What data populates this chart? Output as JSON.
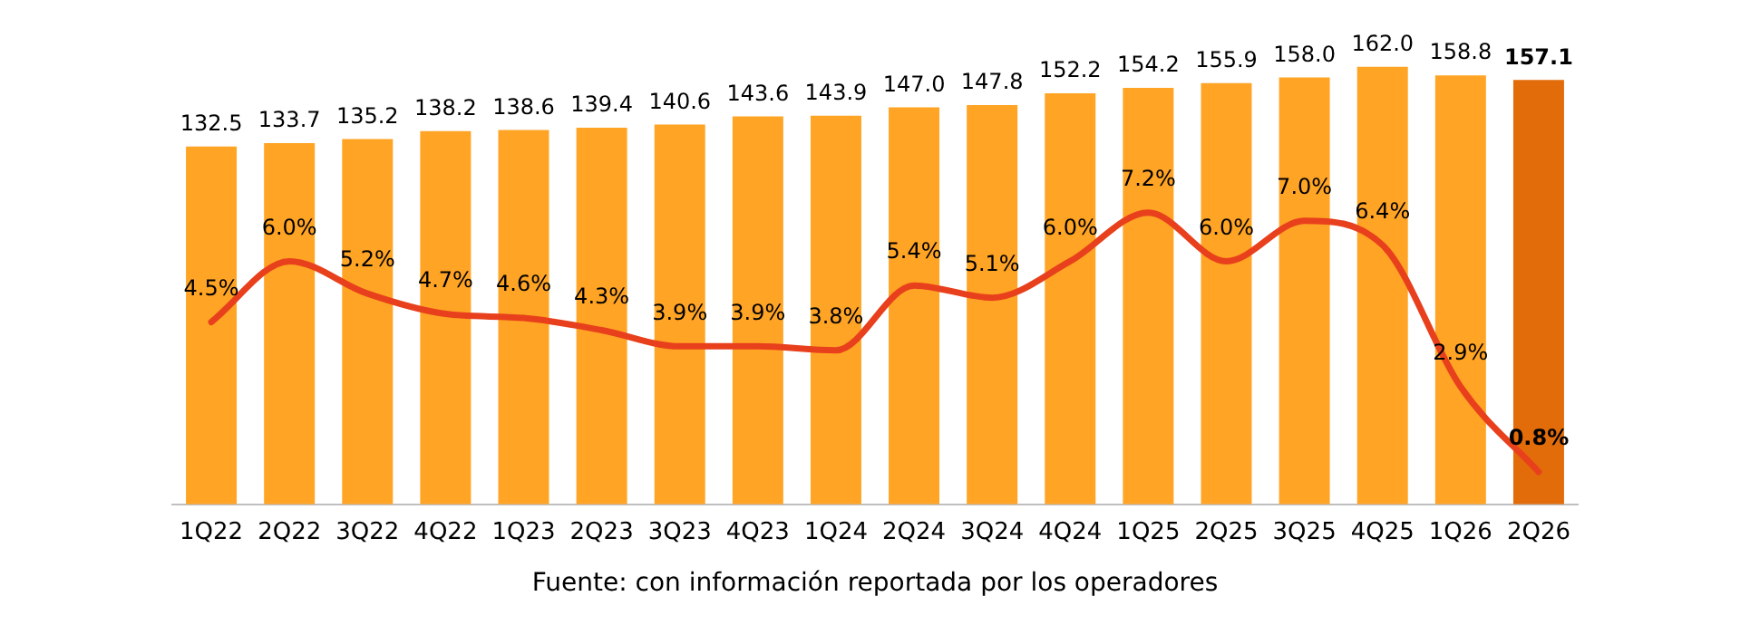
{
  "chart_data": {
    "type": "bar",
    "categories": [
      "1Q22",
      "2Q22",
      "3Q22",
      "4Q22",
      "1Q23",
      "2Q23",
      "3Q23",
      "4Q23",
      "1Q24",
      "2Q24",
      "3Q24",
      "4Q24",
      "1Q25",
      "2Q25",
      "3Q25",
      "4Q25",
      "1Q26",
      "2Q26"
    ],
    "series": [
      {
        "colors": [
          "#ffa424",
          "#ffa424",
          "#ffa424",
          "#ffa424",
          "#ffa424",
          "#ffa424",
          "#ffa424",
          "#ffa424",
          "#ffa424",
          "#ffa424",
          "#ffa424",
          "#ffa424",
          "#ffa424",
          "#ffa424",
          "#ffa424",
          "#ffa424",
          "#ffa424",
          "#e36c0a"
        ],
        "values": [
          132.5,
          133.7,
          135.2,
          138.2,
          138.6,
          139.4,
          140.6,
          143.6,
          143.9,
          147.0,
          147.8,
          152.2,
          154.2,
          155.9,
          158.0,
          162.0,
          158.8,
          157.1
        ],
        "value_labels": [
          "132.5",
          "133.7",
          "135.2",
          "138.2",
          "138.6",
          "139.4",
          "140.6",
          "143.6",
          "143.9",
          "147.0",
          "147.8",
          "152.2",
          "154.2",
          "155.9",
          "158.0",
          "162.0",
          "158.8",
          "157.1"
        ]
      },
      {
        "type": "line",
        "axis": "y2",
        "color": "#e8401c",
        "values": [
          4.5,
          6.0,
          5.2,
          4.7,
          4.6,
          4.3,
          3.9,
          3.9,
          3.8,
          5.4,
          5.1,
          6.0,
          7.2,
          6.0,
          7.0,
          6.4,
          2.9,
          0.8
        ],
        "value_labels": [
          "4.5%",
          "6.0%",
          "5.2%",
          "4.7%",
          "4.6%",
          "4.3%",
          "3.9%",
          "3.9%",
          "3.8%",
          "5.4%",
          "5.1%",
          "6.0%",
          "7.2%",
          "6.0%",
          "7.0%",
          "6.4%",
          "2.9%",
          "0.8%"
        ]
      }
    ],
    "tick_labels": "x",
    "grid": false,
    "legend": false,
    "marker": "none",
    "line_style": "solid",
    "annotations": [
      "Fuente: con información reportada por los operadores"
    ]
  }
}
